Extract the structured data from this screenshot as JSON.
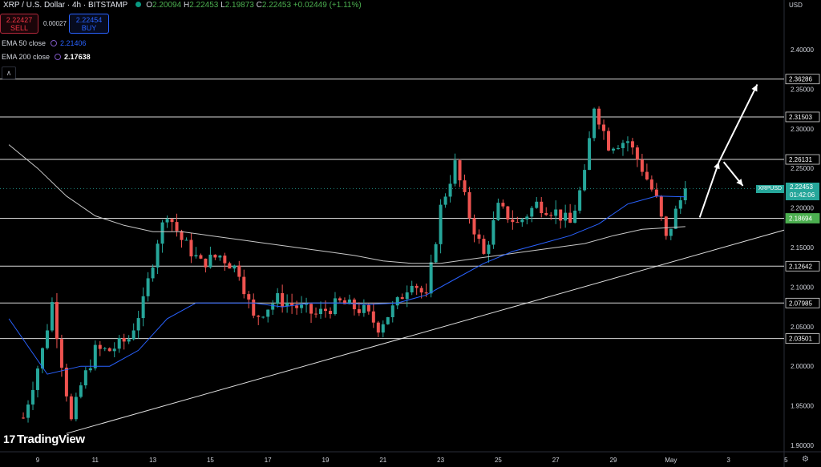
{
  "header": {
    "symbol": "XRP / U.S. Dollar · 4h · BITSTAMP",
    "o_label": "O",
    "o_value": "2.20094",
    "h_label": "H",
    "h_value": "2.22453",
    "l_label": "L",
    "l_value": "2.19873",
    "c_label": "C",
    "c_value": "2.22453",
    "change": "+0.02449 (+1.11%)"
  },
  "trade": {
    "sell_price": "2.22427",
    "sell_label": "SELL",
    "spread": "0.00027",
    "buy_price": "2.22454",
    "buy_label": "BUY"
  },
  "indicators": {
    "ema50_label": "EMA 50 close",
    "ema50_value": "2.21406",
    "ema200_label": "EMA 200 close",
    "ema200_value": "2.17638",
    "collapse_glyph": "∧"
  },
  "axis_currency": "USD",
  "price_label": {
    "symbol": "XRPUSD",
    "price": "2.22453",
    "countdown": "01:42:06"
  },
  "branding": {
    "logo_text": "TradingView"
  },
  "colors": {
    "up": "#26a69a",
    "down": "#ef5350",
    "ema50": "#2962ff",
    "ema200": "#c8c8c8",
    "levels": "#d8d8d8"
  },
  "chart_data": {
    "type": "candlestick",
    "ylim": [
      1.9,
      2.405
    ],
    "y_ticks": [
      "2.40000",
      "2.35000",
      "2.30000",
      "2.25000",
      "2.20000",
      "2.15000",
      "2.10000",
      "2.05000",
      "2.00000",
      "1.95000",
      "1.90000"
    ],
    "x_ticks": [
      "9",
      "11",
      "13",
      "15",
      "17",
      "19",
      "21",
      "23",
      "25",
      "27",
      "29",
      "May",
      "3",
      "5"
    ],
    "x_tick_dates": [
      "2025-04-09",
      "2025-04-11",
      "2025-04-13",
      "2025-04-15",
      "2025-04-17",
      "2025-04-19",
      "2025-04-21",
      "2025-04-23",
      "2025-04-25",
      "2025-04-27",
      "2025-04-29",
      "2025-05-01",
      "2025-05-03",
      "2025-05-05"
    ],
    "levels": [
      "2.36286",
      "2.31503",
      "2.26131",
      "2.18694",
      "2.12642",
      "2.07985",
      "2.03501"
    ],
    "trendline": [
      [
        "2025-04-10",
        1.915
      ],
      [
        "2025-05-06",
        2.172
      ]
    ],
    "arrows": [
      {
        "from": [
          "2025-05-02",
          2.188
        ],
        "to": [
          "2025-05-02T16:00",
          2.258
        ]
      },
      {
        "from": [
          "2025-05-02T16:00",
          2.258
        ],
        "to": [
          "2025-05-04",
          2.356
        ]
      },
      {
        "from": [
          "2025-05-02T20:00",
          2.258
        ],
        "to": [
          "2025-05-03T12:00",
          2.228
        ]
      }
    ],
    "keyframes": [
      [
        "2025-04-08T12:00",
        1.935
      ],
      [
        "2025-04-09T04:00",
        2.02
      ],
      [
        "2025-04-09T12:00",
        2.08
      ],
      [
        "2025-04-10T04:00",
        1.93
      ],
      [
        "2025-04-10T12:00",
        1.975
      ],
      [
        "2025-04-11T00:00",
        2.02
      ],
      [
        "2025-04-11T12:00",
        2.02
      ],
      [
        "2025-04-12T04:00",
        2.035
      ],
      [
        "2025-04-12T16:00",
        2.08
      ],
      [
        "2025-04-13T04:00",
        2.16
      ],
      [
        "2025-04-13T12:00",
        2.195
      ],
      [
        "2025-04-14T00:00",
        2.16
      ],
      [
        "2025-04-14T16:00",
        2.13
      ],
      [
        "2025-04-15T08:00",
        2.14
      ],
      [
        "2025-04-16T00:00",
        2.12
      ],
      [
        "2025-04-16T12:00",
        2.06
      ],
      [
        "2025-04-17T08:00",
        2.085
      ],
      [
        "2025-04-18T00:00",
        2.075
      ],
      [
        "2025-04-18T16:00",
        2.065
      ],
      [
        "2025-04-19T12:00",
        2.08
      ],
      [
        "2025-04-20T08:00",
        2.07
      ],
      [
        "2025-04-20T20:00",
        2.05
      ],
      [
        "2025-04-21T12:00",
        2.08
      ],
      [
        "2025-04-22T00:00",
        2.11
      ],
      [
        "2025-04-22T12:00",
        2.085
      ],
      [
        "2025-04-23T00:00",
        2.2
      ],
      [
        "2025-04-23T12:00",
        2.255
      ],
      [
        "2025-04-24T00:00",
        2.19
      ],
      [
        "2025-04-24T12:00",
        2.14
      ],
      [
        "2025-04-25T00:00",
        2.2
      ],
      [
        "2025-04-25T16:00",
        2.18
      ],
      [
        "2025-04-26T08:00",
        2.205
      ],
      [
        "2025-04-27T00:00",
        2.195
      ],
      [
        "2025-04-27T12:00",
        2.18
      ],
      [
        "2025-04-28T00:00",
        2.24
      ],
      [
        "2025-04-28T08:00",
        2.33
      ],
      [
        "2025-04-28T20:00",
        2.28
      ],
      [
        "2025-04-29T12:00",
        2.285
      ],
      [
        "2025-04-30T00:00",
        2.25
      ],
      [
        "2025-04-30T12:00",
        2.21
      ],
      [
        "2025-04-30T20:00",
        2.16
      ],
      [
        "2025-05-01T04:00",
        2.195
      ],
      [
        "2025-05-01T12:00",
        2.22453
      ]
    ],
    "ema50": [
      [
        "2025-04-08T00:00",
        2.06
      ],
      [
        "2025-04-09T08:00",
        1.99
      ],
      [
        "2025-04-10T12:00",
        2.0
      ],
      [
        "2025-04-11T12:00",
        2.0
      ],
      [
        "2025-04-12T12:00",
        2.02
      ],
      [
        "2025-04-13T12:00",
        2.06
      ],
      [
        "2025-04-14T12:00",
        2.08
      ],
      [
        "2025-04-15T12:00",
        2.08
      ],
      [
        "2025-04-16T12:00",
        2.08
      ],
      [
        "2025-04-17T12:00",
        2.075
      ],
      [
        "2025-04-18T12:00",
        2.08
      ],
      [
        "2025-04-19T12:00",
        2.08
      ],
      [
        "2025-04-20T12:00",
        2.078
      ],
      [
        "2025-04-21T12:00",
        2.08
      ],
      [
        "2025-04-22T12:00",
        2.09
      ],
      [
        "2025-04-23T12:00",
        2.11
      ],
      [
        "2025-04-24T12:00",
        2.13
      ],
      [
        "2025-04-25T12:00",
        2.145
      ],
      [
        "2025-04-26T12:00",
        2.155
      ],
      [
        "2025-04-27T12:00",
        2.165
      ],
      [
        "2025-04-28T12:00",
        2.18
      ],
      [
        "2025-04-29T12:00",
        2.205
      ],
      [
        "2025-04-30T12:00",
        2.215
      ],
      [
        "2025-05-01T12:00",
        2.21406
      ]
    ],
    "ema200": [
      [
        "2025-04-08T00:00",
        2.28
      ],
      [
        "2025-04-09T00:00",
        2.25
      ],
      [
        "2025-04-10T00:00",
        2.215
      ],
      [
        "2025-04-11T00:00",
        2.19
      ],
      [
        "2025-04-12T00:00",
        2.178
      ],
      [
        "2025-04-13T00:00",
        2.17
      ],
      [
        "2025-04-14T00:00",
        2.17
      ],
      [
        "2025-04-15T00:00",
        2.165
      ],
      [
        "2025-04-16T00:00",
        2.16
      ],
      [
        "2025-04-17T00:00",
        2.155
      ],
      [
        "2025-04-18T00:00",
        2.15
      ],
      [
        "2025-04-19T00:00",
        2.145
      ],
      [
        "2025-04-20T00:00",
        2.14
      ],
      [
        "2025-04-21T00:00",
        2.133
      ],
      [
        "2025-04-22T00:00",
        2.13
      ],
      [
        "2025-04-23T00:00",
        2.13
      ],
      [
        "2025-04-24T00:00",
        2.135
      ],
      [
        "2025-04-25T00:00",
        2.14
      ],
      [
        "2025-04-26T00:00",
        2.145
      ],
      [
        "2025-04-27T00:00",
        2.15
      ],
      [
        "2025-04-28T00:00",
        2.155
      ],
      [
        "2025-04-29T00:00",
        2.165
      ],
      [
        "2025-04-30T00:00",
        2.173
      ],
      [
        "2025-05-01T12:00",
        2.17638
      ]
    ]
  }
}
